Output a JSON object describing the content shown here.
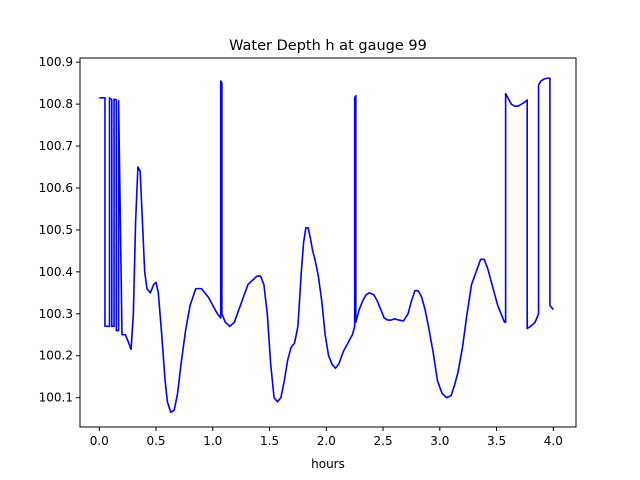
{
  "chart_data": {
    "type": "line",
    "title": "Water Depth h at gauge 99",
    "xlabel": "hours",
    "ylabel": "",
    "xlim": [
      -0.17,
      4.2
    ],
    "ylim": [
      100.03,
      100.91
    ],
    "xticks": [
      0.0,
      0.5,
      1.0,
      1.5,
      2.0,
      2.5,
      3.0,
      3.5,
      4.0
    ],
    "xtick_labels": [
      "0.0",
      "0.5",
      "1.0",
      "1.5",
      "2.0",
      "2.5",
      "3.0",
      "3.5",
      "4.0"
    ],
    "yticks": [
      100.1,
      100.2,
      100.3,
      100.4,
      100.5,
      100.6,
      100.7,
      100.8,
      100.9
    ],
    "ytick_labels": [
      "100.1",
      "100.2",
      "100.3",
      "100.4",
      "100.5",
      "100.6",
      "100.7",
      "100.8",
      "100.9"
    ],
    "grid": false,
    "legend": "none",
    "series": [
      {
        "color": "#0000ff",
        "x": [
          0.0,
          0.05,
          0.05,
          0.09,
          0.09,
          0.11,
          0.11,
          0.13,
          0.13,
          0.15,
          0.15,
          0.17,
          0.17,
          0.2,
          0.23,
          0.26,
          0.28,
          0.3,
          0.32,
          0.34,
          0.36,
          0.38,
          0.4,
          0.42,
          0.45,
          0.48,
          0.5,
          0.52,
          0.55,
          0.58,
          0.6,
          0.63,
          0.66,
          0.69,
          0.72,
          0.76,
          0.8,
          0.85,
          0.9,
          0.93,
          0.96,
          1.0,
          1.04,
          1.07,
          1.07,
          1.08,
          1.08,
          1.11,
          1.15,
          1.19,
          1.23,
          1.27,
          1.31,
          1.35,
          1.39,
          1.42,
          1.45,
          1.48,
          1.51,
          1.54,
          1.57,
          1.6,
          1.63,
          1.66,
          1.69,
          1.72,
          1.75,
          1.78,
          1.8,
          1.82,
          1.84,
          1.86,
          1.88,
          1.9,
          1.93,
          1.96,
          1.99,
          2.02,
          2.05,
          2.08,
          2.11,
          2.15,
          2.19,
          2.23,
          2.25,
          2.25,
          2.26,
          2.26,
          2.29,
          2.32,
          2.35,
          2.38,
          2.42,
          2.45,
          2.48,
          2.51,
          2.54,
          2.57,
          2.6,
          2.64,
          2.68,
          2.72,
          2.75,
          2.78,
          2.81,
          2.84,
          2.87,
          2.9,
          2.94,
          2.98,
          3.02,
          3.06,
          3.1,
          3.13,
          3.16,
          3.2,
          3.24,
          3.28,
          3.32,
          3.36,
          3.39,
          3.42,
          3.45,
          3.48,
          3.51,
          3.54,
          3.57,
          3.58,
          3.58,
          3.6,
          3.63,
          3.66,
          3.69,
          3.72,
          3.75,
          3.77,
          3.77,
          3.8,
          3.84,
          3.87,
          3.87,
          3.89,
          3.92,
          3.95,
          3.97,
          3.97,
          4.0
        ],
        "y": [
          100.815,
          100.815,
          100.27,
          100.27,
          100.815,
          100.81,
          100.27,
          100.27,
          100.812,
          100.81,
          100.26,
          100.26,
          100.808,
          100.25,
          100.25,
          100.23,
          100.215,
          100.3,
          100.52,
          100.65,
          100.64,
          100.52,
          100.4,
          100.36,
          100.35,
          100.37,
          100.375,
          100.35,
          100.25,
          100.14,
          100.09,
          100.065,
          100.07,
          100.11,
          100.18,
          100.26,
          100.32,
          100.36,
          100.36,
          100.35,
          100.34,
          100.32,
          100.3,
          100.29,
          100.855,
          100.85,
          100.3,
          100.28,
          100.27,
          100.28,
          100.31,
          100.34,
          100.37,
          100.38,
          100.39,
          100.39,
          100.37,
          100.3,
          100.18,
          100.1,
          100.09,
          100.1,
          100.14,
          100.19,
          100.22,
          100.23,
          100.27,
          100.4,
          100.47,
          100.505,
          100.505,
          100.48,
          100.45,
          100.43,
          100.39,
          100.33,
          100.25,
          100.2,
          100.18,
          100.17,
          100.18,
          100.21,
          100.23,
          100.25,
          100.27,
          100.815,
          100.82,
          100.28,
          100.31,
          100.33,
          100.345,
          100.35,
          100.345,
          100.33,
          100.31,
          100.29,
          100.285,
          100.285,
          100.288,
          100.285,
          100.283,
          100.3,
          100.33,
          100.355,
          100.355,
          100.34,
          100.31,
          100.27,
          100.21,
          100.14,
          100.11,
          100.1,
          100.105,
          100.13,
          100.16,
          100.22,
          100.3,
          100.37,
          100.4,
          100.43,
          100.43,
          100.41,
          100.38,
          100.35,
          100.32,
          100.3,
          100.28,
          100.28,
          100.825,
          100.815,
          100.8,
          100.795,
          100.795,
          100.8,
          100.805,
          100.81,
          100.265,
          100.27,
          100.28,
          100.3,
          100.845,
          100.855,
          100.86,
          100.862,
          100.862,
          100.32,
          100.31
        ]
      }
    ]
  }
}
